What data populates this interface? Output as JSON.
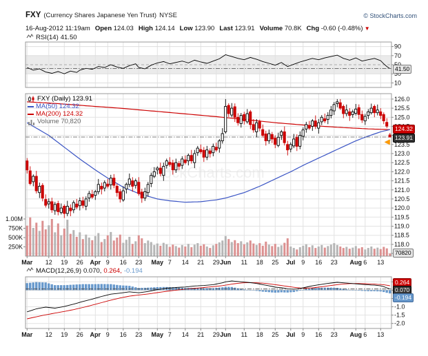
{
  "header": {
    "symbol": "FXY",
    "name": "(Currency Shares Japanese Yen Trust)",
    "exchange": "NYSE",
    "copyright": "© StockCharts.com",
    "timestamp": "16-Aug-2012 11:19am",
    "quote": [
      {
        "label": "Open",
        "value": "124.03"
      },
      {
        "label": "High",
        "value": "124.14"
      },
      {
        "label": "Low",
        "value": "123.90"
      },
      {
        "label": "Last",
        "value": "123.91"
      },
      {
        "label": "Volume",
        "value": "70.8K"
      },
      {
        "label": "Chg",
        "value": "-0.60 (-0.48%)",
        "icon": "down-triangle-icon"
      }
    ]
  },
  "rsi_panel": {
    "label": "RSI(14)",
    "value": "41.50",
    "badge": "41.50"
  },
  "main_panel": {
    "legend": [
      {
        "icon": "candlestick-icon",
        "text": "FXY (Daily) 123.91",
        "color": "#000000"
      },
      {
        "icon": "line-icon",
        "text": "MA(50) 124.32",
        "color": "#3a54c4"
      },
      {
        "icon": "line-icon",
        "text": "MA(200) 124.32",
        "color": "#cc0000"
      },
      {
        "icon": "bars-icon",
        "text": "Volume 70,820",
        "color": "#666666"
      }
    ],
    "badge_ma": "124.32",
    "badge_last": "123.91",
    "badge_volume": "70820"
  },
  "macd_panel": {
    "label": "MACD(12,26,9)",
    "value_macd": "0.070,",
    "value_signal": "0.264,",
    "value_hist": "-0.194",
    "badge_macd": "0.070",
    "badge_signal": "0.264",
    "badge_hist": "-0.194"
  },
  "colors": {
    "up": "#000000",
    "down": "#cc0000",
    "ma50": "#3a54c4",
    "ma200": "#cc0000",
    "macd_line": "#000000",
    "signal": "#cc0000",
    "hist": "#6899cc",
    "volume_up": "#b5b5b5",
    "volume_down": "#dc9090",
    "link": "#33527a",
    "marker": "#ff9900"
  },
  "chart_data": {
    "type": "candlestick",
    "title": "FXY (Currency Shares Japanese Yen Trust) NYSE",
    "watermark": "StockCharts.com",
    "last_price": 123.91,
    "price_range": [
      117.5,
      126.0
    ],
    "price_ticks": [
      "126.0",
      "125.5",
      "125.0",
      "124.5",
      "124.0",
      "123.5",
      "123.0",
      "122.5",
      "122.0",
      "121.5",
      "121.0",
      "120.5",
      "120.0",
      "119.5",
      "119.0",
      "118.5",
      "118.0",
      "117.5"
    ],
    "volume_ticks": [
      {
        "label": "1.00M",
        "v": 1000000
      },
      {
        "label": "750K",
        "v": 750000
      },
      {
        "label": "500K",
        "v": 500000
      },
      {
        "label": "250K",
        "v": 250000
      }
    ],
    "x_labels": [
      "Mar",
      "12",
      "19",
      "26",
      "Apr",
      "9",
      "16",
      "23",
      "May",
      "7",
      "14",
      "21",
      "29",
      "Jun",
      "11",
      "18",
      "25",
      "Jul",
      "9",
      "16",
      "23",
      "Aug",
      "6",
      "13"
    ],
    "x_label_positions": [
      0,
      7,
      12,
      17,
      22,
      26,
      31,
      36,
      42,
      46,
      51,
      56,
      61,
      64,
      70,
      75,
      80,
      85,
      89,
      94,
      99,
      106,
      109,
      114
    ],
    "candles": [
      [
        122.6,
        122.75,
        121.9,
        122.1
      ],
      [
        122.05,
        122.3,
        121.25,
        121.35
      ],
      [
        121.45,
        121.85,
        121.2,
        121.75
      ],
      [
        121.75,
        122.05,
        120.8,
        120.95
      ],
      [
        120.85,
        121.4,
        120.55,
        121.2
      ],
      [
        121.25,
        121.37,
        120.37,
        120.55
      ],
      [
        120.47,
        120.75,
        120.03,
        120.15
      ],
      [
        120.23,
        120.53,
        119.97,
        120.35
      ],
      [
        120.35,
        120.57,
        119.74,
        119.9
      ],
      [
        119.85,
        120.34,
        119.63,
        120.2
      ],
      [
        120.25,
        120.4,
        119.6,
        119.8
      ],
      [
        119.75,
        120.25,
        119.65,
        120.0
      ],
      [
        120.1,
        120.2,
        119.45,
        119.7
      ],
      [
        119.7,
        120.4,
        119.55,
        120.1
      ],
      [
        120.0,
        120.2,
        119.55,
        119.85
      ],
      [
        119.9,
        120.42,
        119.72,
        120.3
      ],
      [
        120.22,
        120.5,
        119.93,
        120.05
      ],
      [
        120.13,
        120.58,
        119.87,
        120.4
      ],
      [
        120.4,
        120.62,
        119.99,
        120.15
      ],
      [
        120.1,
        120.64,
        119.88,
        120.5
      ],
      [
        120.55,
        120.95,
        120.35,
        120.8
      ],
      [
        120.75,
        121.0,
        120.5,
        120.6
      ],
      [
        120.7,
        121.0,
        120.45,
        120.9
      ],
      [
        120.9,
        121.6,
        120.75,
        121.3
      ],
      [
        121.2,
        121.4,
        120.75,
        121.05
      ],
      [
        121.1,
        121.52,
        120.92,
        121.4
      ],
      [
        121.32,
        121.6,
        121.08,
        121.2
      ],
      [
        121.28,
        121.83,
        121.02,
        121.65
      ],
      [
        121.65,
        121.87,
        121.09,
        121.25
      ],
      [
        121.2,
        121.34,
        120.63,
        120.85
      ],
      [
        120.9,
        121.05,
        120.3,
        120.5
      ],
      [
        120.45,
        121.2,
        120.35,
        120.95
      ],
      [
        121.05,
        121.4,
        120.8,
        121.3
      ],
      [
        121.3,
        121.9,
        121.15,
        121.6
      ],
      [
        121.5,
        121.7,
        120.9,
        121.2
      ],
      [
        121.25,
        121.62,
        121.07,
        121.5
      ],
      [
        121.42,
        121.7,
        120.68,
        120.8
      ],
      [
        120.88,
        121.06,
        120.29,
        120.55
      ],
      [
        120.55,
        121.12,
        120.39,
        120.9
      ],
      [
        120.85,
        121.44,
        120.63,
        121.3
      ],
      [
        121.35,
        121.95,
        121.15,
        121.8
      ],
      [
        121.75,
        122.25,
        121.65,
        122.0
      ],
      [
        122.1,
        122.3,
        121.85,
        122.2
      ],
      [
        122.2,
        122.5,
        121.75,
        121.9
      ],
      [
        121.8,
        122.5,
        121.5,
        122.3
      ],
      [
        122.35,
        122.72,
        122.17,
        122.6
      ],
      [
        122.52,
        122.8,
        122.28,
        122.4
      ],
      [
        122.48,
        122.66,
        121.84,
        122.1
      ],
      [
        122.1,
        122.72,
        121.94,
        122.5
      ],
      [
        122.45,
        122.59,
        122.08,
        122.3
      ],
      [
        122.35,
        122.85,
        122.15,
        122.7
      ],
      [
        122.65,
        122.9,
        122.4,
        122.5
      ],
      [
        122.6,
        123.0,
        122.35,
        122.9
      ],
      [
        122.9,
        123.2,
        122.45,
        122.6
      ],
      [
        122.5,
        123.2,
        122.2,
        123.0
      ],
      [
        123.05,
        123.42,
        122.87,
        123.3
      ],
      [
        123.22,
        123.5,
        122.98,
        123.1
      ],
      [
        123.18,
        123.36,
        122.54,
        122.8
      ],
      [
        122.8,
        123.42,
        122.64,
        123.2
      ],
      [
        123.15,
        123.29,
        122.78,
        123.0
      ],
      [
        123.05,
        123.55,
        122.85,
        123.4
      ],
      [
        123.35,
        123.6,
        123.1,
        123.2
      ],
      [
        123.3,
        123.8,
        123.05,
        123.7
      ],
      [
        123.7,
        124.4,
        123.55,
        124.1
      ],
      [
        124.2,
        126.0,
        124.1,
        125.6
      ],
      [
        125.65,
        125.77,
        125.02,
        125.2
      ],
      [
        125.12,
        125.78,
        125.0,
        125.5
      ],
      [
        125.58,
        125.76,
        124.74,
        125.0
      ],
      [
        125.0,
        125.22,
        124.54,
        124.7
      ],
      [
        124.65,
        125.24,
        124.43,
        125.1
      ],
      [
        125.15,
        125.3,
        124.6,
        124.8
      ],
      [
        124.75,
        125.45,
        124.65,
        125.2
      ],
      [
        125.3,
        125.4,
        124.35,
        124.6
      ],
      [
        124.6,
        124.9,
        124.15,
        124.3
      ],
      [
        124.2,
        124.9,
        123.9,
        124.7
      ],
      [
        124.75,
        124.87,
        124.22,
        124.4
      ],
      [
        124.32,
        124.6,
        123.88,
        124.0
      ],
      [
        124.08,
        124.26,
        123.44,
        123.7
      ],
      [
        123.7,
        124.32,
        123.54,
        124.1
      ],
      [
        124.05,
        124.19,
        123.58,
        123.8
      ],
      [
        123.85,
        124.0,
        123.3,
        123.5
      ],
      [
        123.45,
        124.15,
        123.35,
        123.9
      ],
      [
        124.0,
        124.3,
        123.75,
        124.2
      ],
      [
        124.2,
        124.5,
        123.45,
        123.6
      ],
      [
        123.5,
        123.7,
        122.9,
        123.2
      ],
      [
        123.25,
        123.62,
        123.07,
        123.5
      ],
      [
        123.42,
        124.08,
        123.3,
        123.8
      ],
      [
        123.88,
        124.06,
        123.14,
        123.4
      ],
      [
        123.4,
        124.22,
        123.24,
        124.0
      ],
      [
        123.95,
        124.44,
        123.73,
        124.3
      ],
      [
        124.35,
        124.75,
        124.15,
        124.6
      ],
      [
        124.55,
        124.8,
        124.3,
        124.4
      ],
      [
        124.5,
        124.9,
        124.25,
        124.8
      ],
      [
        124.8,
        125.1,
        124.35,
        124.5
      ],
      [
        124.4,
        124.9,
        124.1,
        124.7
      ],
      [
        124.75,
        125.12,
        124.57,
        125.0
      ],
      [
        124.92,
        125.2,
        124.68,
        124.8
      ],
      [
        124.88,
        125.28,
        124.62,
        125.1
      ],
      [
        125.1,
        125.62,
        124.94,
        125.4
      ],
      [
        125.35,
        125.84,
        125.13,
        125.7
      ],
      [
        125.75,
        126.0,
        125.55,
        125.85
      ],
      [
        125.8,
        126.0,
        125.4,
        125.5
      ],
      [
        125.6,
        125.7,
        124.95,
        125.2
      ],
      [
        125.2,
        125.7,
        125.05,
        125.4
      ],
      [
        125.3,
        125.5,
        124.8,
        125.1
      ],
      [
        125.15,
        125.42,
        124.97,
        125.3
      ],
      [
        125.22,
        125.73,
        125.1,
        125.45
      ],
      [
        125.53,
        125.71,
        124.89,
        125.15
      ],
      [
        125.15,
        125.37,
        124.69,
        124.85
      ],
      [
        124.8,
        125.19,
        124.58,
        125.05
      ],
      [
        125.1,
        125.45,
        124.9,
        125.3
      ],
      [
        125.25,
        125.75,
        125.15,
        125.5
      ],
      [
        125.6,
        125.7,
        125.0,
        125.25
      ],
      [
        125.25,
        125.7,
        125.1,
        125.4
      ],
      [
        125.3,
        125.5,
        124.9,
        125.1
      ],
      [
        125.15,
        125.27,
        124.62,
        124.8
      ],
      [
        124.72,
        124.95,
        124.4,
        124.51
      ],
      [
        124.03,
        124.14,
        123.9,
        123.91
      ]
    ],
    "volume": [
      820000,
      1040000,
      760000,
      900000,
      680000,
      950000,
      720000,
      830000,
      1000000,
      640000,
      880000,
      560000,
      740000,
      980000,
      600000,
      700000,
      520000,
      640000,
      460000,
      580000,
      500000,
      430000,
      540000,
      620000,
      380000,
      460000,
      560000,
      650000,
      420000,
      500000,
      580000,
      360000,
      440000,
      520000,
      330000,
      400000,
      560000,
      480000,
      350000,
      420000,
      380000,
      300000,
      340000,
      280000,
      360000,
      320000,
      250000,
      310000,
      270000,
      230000,
      300000,
      260000,
      330000,
      240000,
      310000,
      350000,
      280000,
      320000,
      260000,
      220000,
      290000,
      330000,
      370000,
      420000,
      540000,
      460000,
      380000,
      430000,
      350000,
      400000,
      320000,
      370000,
      420000,
      340000,
      300000,
      350000,
      280000,
      390000,
      310000,
      270000,
      330000,
      250000,
      290000,
      360000,
      480000,
      260000,
      220000,
      180000,
      240000,
      280000,
      320000,
      240000,
      290000,
      220000,
      260000,
      300000,
      230000,
      270000,
      310000,
      350000,
      300000,
      260000,
      220000,
      250000,
      200000,
      230000,
      270000,
      210000,
      240000,
      180000,
      220000,
      260000,
      200000,
      230000,
      190000,
      250000,
      210000,
      70820
    ],
    "ma50": {
      "x": [
        0,
        7,
        12,
        17,
        22,
        26,
        31,
        36,
        42,
        46,
        51,
        56,
        61,
        64,
        70,
        75,
        80,
        85,
        89,
        94,
        99,
        106,
        109,
        114,
        117
      ],
      "y": [
        124.7,
        124.0,
        123.35,
        122.7,
        122.1,
        121.65,
        121.15,
        120.8,
        120.5,
        120.4,
        120.32,
        120.35,
        120.45,
        120.55,
        120.85,
        121.2,
        121.6,
        122.0,
        122.35,
        122.75,
        123.15,
        123.7,
        123.9,
        124.2,
        124.32
      ]
    },
    "ma200": {
      "x": [
        0,
        10,
        20,
        30,
        40,
        50,
        60,
        70,
        80,
        90,
        100,
        110,
        117
      ],
      "y": [
        125.85,
        125.75,
        125.62,
        125.5,
        125.35,
        125.2,
        125.05,
        124.88,
        124.7,
        124.56,
        124.45,
        124.36,
        124.32
      ]
    },
    "rsi": {
      "scale": [
        90,
        70,
        50,
        30,
        10
      ],
      "band": [
        30,
        70
      ],
      "last": 41.5,
      "x": [
        0,
        2,
        4,
        6,
        8,
        10,
        12,
        14,
        16,
        17,
        19,
        21,
        23,
        25,
        27,
        29,
        31,
        33,
        35,
        36,
        38,
        40,
        42,
        44,
        46,
        48,
        50,
        52,
        54,
        56,
        58,
        60,
        62,
        64,
        66,
        68,
        70,
        72,
        74,
        76,
        78,
        80,
        82,
        84,
        86,
        88,
        90,
        92,
        94,
        96,
        98,
        100,
        102,
        104,
        106,
        108,
        110,
        112,
        114,
        115,
        116,
        117
      ],
      "y": [
        44,
        38,
        41,
        34,
        31,
        35,
        30,
        36,
        33,
        38,
        42,
        40,
        46,
        44,
        50,
        45,
        42,
        48,
        52,
        44,
        41,
        49,
        54,
        57,
        52,
        55,
        58,
        54,
        60,
        56,
        53,
        58,
        63,
        72,
        68,
        64,
        61,
        66,
        62,
        57,
        53,
        49,
        55,
        46,
        51,
        56,
        60,
        64,
        61,
        65,
        68,
        71,
        64,
        60,
        65,
        58,
        61,
        64,
        59,
        52,
        46,
        41.5
      ]
    },
    "macd": {
      "scale": [
        "0.5",
        "0.0",
        "-0.5",
        "-1.0",
        "-1.5",
        "-2.0"
      ],
      "last": 0.07,
      "last_signal": 0.264,
      "last_hist": -0.194,
      "x": [
        0,
        3,
        6,
        9,
        12,
        15,
        18,
        21,
        24,
        27,
        30,
        33,
        36,
        39,
        42,
        45,
        48,
        51,
        54,
        57,
        60,
        63,
        64,
        66,
        68,
        70,
        72,
        74,
        76,
        78,
        80,
        82,
        84,
        86,
        88,
        90,
        92,
        94,
        96,
        98,
        100,
        102,
        104,
        106,
        108,
        110,
        112,
        114,
        115,
        116,
        117
      ],
      "macd": [
        -1.3,
        -1.12,
        -1.02,
        -1.08,
        -0.98,
        -0.84,
        -0.68,
        -0.54,
        -0.38,
        -0.24,
        -0.18,
        -0.1,
        -0.16,
        -0.08,
        0.03,
        0.12,
        0.16,
        0.19,
        0.25,
        0.28,
        0.33,
        0.44,
        0.5,
        0.55,
        0.52,
        0.48,
        0.45,
        0.4,
        0.33,
        0.26,
        0.18,
        0.15,
        0.08,
        0.06,
        0.1,
        0.18,
        0.26,
        0.32,
        0.38,
        0.43,
        0.47,
        0.44,
        0.41,
        0.38,
        0.35,
        0.32,
        0.3,
        0.26,
        0.21,
        0.14,
        0.07
      ],
      "signal": [
        -1.72,
        -1.6,
        -1.48,
        -1.38,
        -1.28,
        -1.17,
        -1.04,
        -0.9,
        -0.75,
        -0.6,
        -0.47,
        -0.36,
        -0.29,
        -0.23,
        -0.15,
        -0.07,
        0.0,
        0.06,
        0.11,
        0.16,
        0.21,
        0.27,
        0.3,
        0.36,
        0.41,
        0.44,
        0.45,
        0.44,
        0.42,
        0.38,
        0.33,
        0.28,
        0.22,
        0.17,
        0.13,
        0.12,
        0.14,
        0.18,
        0.23,
        0.28,
        0.33,
        0.37,
        0.39,
        0.4,
        0.39,
        0.38,
        0.36,
        0.34,
        0.32,
        0.295,
        0.264
      ]
    }
  }
}
